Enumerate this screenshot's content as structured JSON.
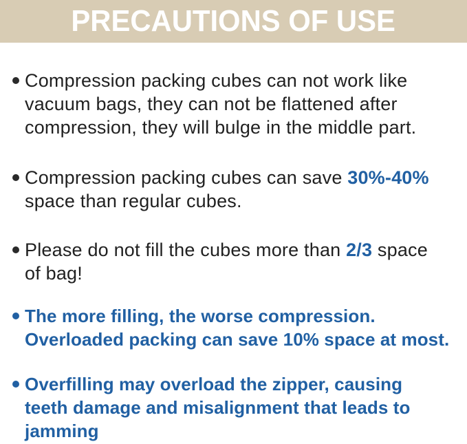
{
  "header": {
    "title": "PRECAUTIONS OF USE",
    "background_color": "#d8ccb4",
    "text_color": "#ffffff"
  },
  "colors": {
    "body_text": "#212121",
    "accent_blue": "#2160a3",
    "page_background": "#ffffff"
  },
  "bullets": [
    {
      "style": "plain",
      "lines": [
        "Compression packing cubes can not work like",
        "vacuum bags, they can not be flattened after",
        "compression, they will bulge in the middle part."
      ]
    },
    {
      "style": "plain-with-highlight",
      "line1": {
        "pre": "Compression packing cubes can save ",
        "highlight": "30%-40%",
        "post": ""
      },
      "line2": "space than regular cubes."
    },
    {
      "style": "plain-with-highlight",
      "line1": {
        "pre": "Please do not fill the cubes more than ",
        "highlight": "2/3",
        "post": " space"
      },
      "line2": "of bag!"
    },
    {
      "style": "accent",
      "lines": [
        "The more filling, the worse compression.",
        "Overloaded packing can save 10% space at most."
      ]
    },
    {
      "style": "accent",
      "lines": [
        "Overfilling may overload the zipper, causing",
        "teeth damage and misalignment that leads to",
        "jamming"
      ]
    }
  ]
}
